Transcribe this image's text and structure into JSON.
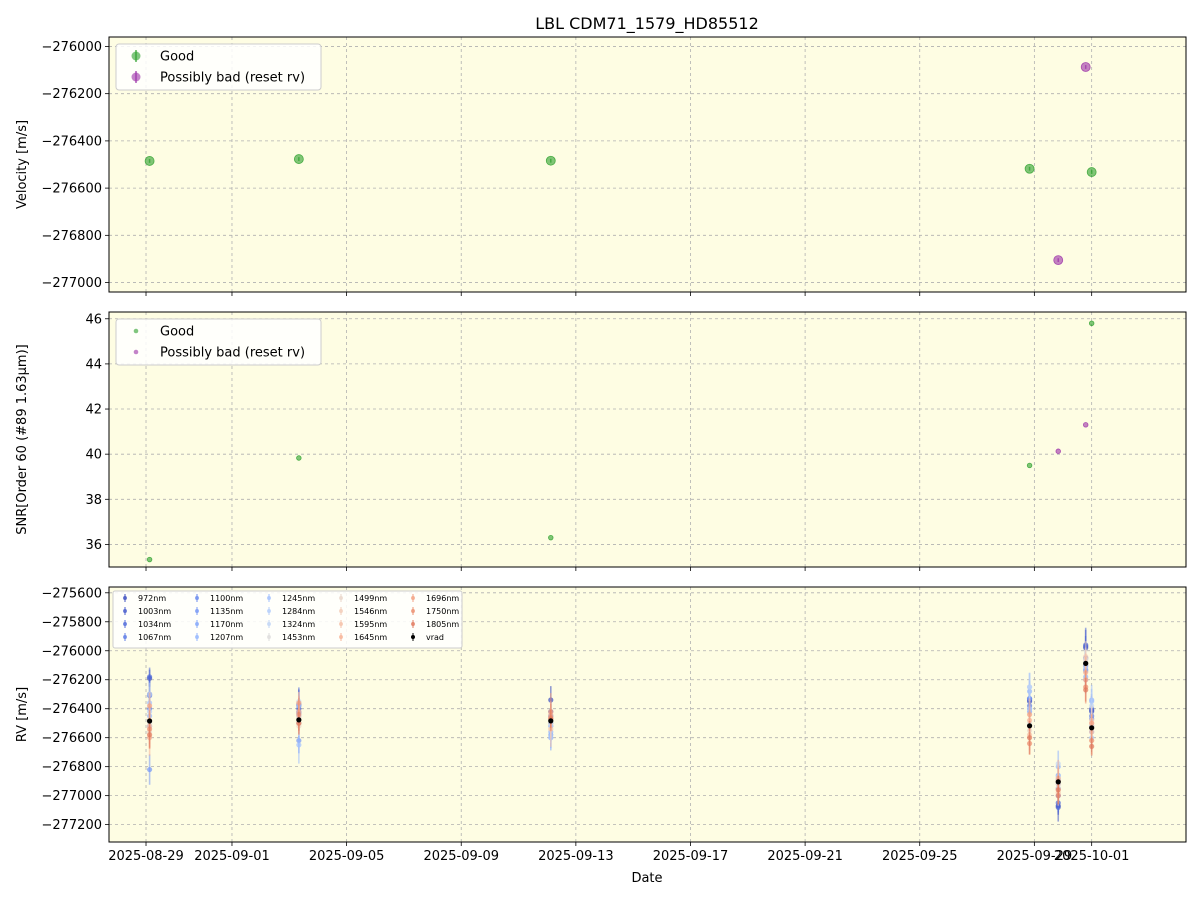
{
  "chart_data": [
    {
      "type": "scatter",
      "title": "LBL CDM71_1579_HD85512",
      "xlabel": "",
      "ylabel": "Velocity [m/s]",
      "ylim": [
        -277040,
        -275960
      ],
      "yticks": [
        -276000,
        -276200,
        -276400,
        -276600,
        -276800,
        -277000
      ],
      "yticklabels": [
        "−276000",
        "−276200",
        "−276400",
        "−276600",
        "−276800",
        "−277000"
      ],
      "grid": true,
      "legend": "upper-left",
      "series": [
        {
          "name": "Good",
          "color": "#2ca02c",
          "x": [
            "2025-08-29",
            "2025-09-03",
            "2025-09-12",
            "2025-09-28",
            "2025-10-01"
          ],
          "y": [
            -276485,
            -276477,
            -276484,
            -276518,
            -276532
          ],
          "yerr": [
            8,
            8,
            8,
            8,
            8
          ]
        },
        {
          "name": "Possibly bad (reset rv)",
          "color": "#9b30a8",
          "x": [
            "2025-09-29",
            "2025-09-30"
          ],
          "y": [
            -276905,
            -276087
          ],
          "yerr": [
            8,
            8
          ]
        }
      ]
    },
    {
      "type": "scatter",
      "title": "",
      "xlabel": "",
      "ylabel": "SNR[Order 60 (#89 1.63μm)]",
      "ylim": [
        35.0,
        46.3
      ],
      "yticks": [
        36,
        38,
        40,
        42,
        44,
        46
      ],
      "yticklabels": [
        "36",
        "38",
        "40",
        "42",
        "44",
        "46"
      ],
      "grid": true,
      "legend": "upper-left",
      "series": [
        {
          "name": "Good",
          "color": "#2ca02c",
          "x": [
            "2025-08-29",
            "2025-09-03",
            "2025-09-12",
            "2025-09-28",
            "2025-10-01"
          ],
          "y": [
            35.33,
            39.83,
            36.3,
            39.5,
            45.8
          ]
        },
        {
          "name": "Possibly bad (reset rv)",
          "color": "#9b30a8",
          "x": [
            "2025-09-29",
            "2025-09-30"
          ],
          "y": [
            40.13,
            41.3
          ]
        }
      ]
    },
    {
      "type": "scatter",
      "title": "",
      "xlabel": "Date",
      "ylabel": "RV [m/s]",
      "ylim": [
        -277320,
        -275560
      ],
      "yticks": [
        -275600,
        -275800,
        -276000,
        -276200,
        -276400,
        -276600,
        -276800,
        -277000,
        -277200
      ],
      "yticklabels": [
        "−275600",
        "−275800",
        "−276000",
        "−276200",
        "−276400",
        "−276600",
        "−276800",
        "−277000",
        "−277200"
      ],
      "xticklabels": [
        "2025-08-29",
        "2025-09-01",
        "2025-09-05",
        "2025-09-09",
        "2025-09-13",
        "2025-09-17",
        "2025-09-21",
        "2025-09-25",
        "2025-09-29",
        "2025-10-01"
      ],
      "xticks": [
        "2025-08-29",
        "2025-09-01",
        "2025-09-05",
        "2025-09-09",
        "2025-09-13",
        "2025-09-17",
        "2025-09-21",
        "2025-09-25",
        "2025-09-29",
        "2025-10-01"
      ],
      "grid": true,
      "legend": "upper-left",
      "epochs": [
        "2025-08-29",
        "2025-09-03",
        "2025-09-12",
        "2025-09-28",
        "2025-09-29",
        "2025-09-30",
        "2025-10-01"
      ],
      "series": [
        {
          "name": "972nm",
          "color": "#3b4cc0",
          "y": [
            -276190,
            -276380,
            -276340,
            -276340,
            -277070,
            -275970,
            -276410
          ]
        },
        {
          "name": "1003nm",
          "color": "#4358cb",
          "y": [
            -276300,
            -276400,
            -276420,
            -276350,
            -277080,
            -275980,
            -276420
          ]
        },
        {
          "name": "1034nm",
          "color": "#4f69d9",
          "y": [
            -276180,
            -276370,
            -276450,
            -276330,
            -277050,
            -275960,
            -276400
          ]
        },
        {
          "name": "1067nm",
          "color": "#5b7ae5",
          "y": [
            -276310,
            -276420,
            -276500,
            -276380,
            -277000,
            -276050,
            -276450
          ]
        },
        {
          "name": "1100nm",
          "color": "#6788ee",
          "y": [
            -276400,
            -276430,
            -276520,
            -276400,
            -276950,
            -276100,
            -276470
          ]
        },
        {
          "name": "1135nm",
          "color": "#7597f6",
          "y": [
            -276820,
            -276620,
            -276600,
            -276330,
            -276890,
            -276130,
            -276520
          ]
        },
        {
          "name": "1170nm",
          "color": "#82a6fb",
          "y": [
            -276520,
            -276500,
            -276580,
            -276420,
            -276860,
            -276140,
            -276560
          ]
        },
        {
          "name": "1207nm",
          "color": "#93b5fe",
          "y": [
            -276450,
            -276450,
            -276560,
            -276280,
            -276800,
            -276180,
            -276340
          ]
        },
        {
          "name": "1245nm",
          "color": "#a1c0ff",
          "y": [
            -276360,
            -276650,
            -276470,
            -276250,
            -276920,
            -276110,
            -276350
          ]
        },
        {
          "name": "1284nm",
          "color": "#b2ccfb",
          "y": [
            -276420,
            -276380,
            -276600,
            -276400,
            -276870,
            -276200,
            -276600
          ]
        },
        {
          "name": "1324nm",
          "color": "#c0d4f5",
          "y": [
            -276300,
            -276350,
            -276520,
            -276250,
            -276780,
            -276060,
            -276380
          ]
        },
        {
          "name": "1453nm",
          "color": "#dddcdc",
          "y": [
            -276500,
            -276480,
            -276500,
            -276500,
            -276900,
            -276080,
            -276520
          ]
        },
        {
          "name": "1499nm",
          "color": "#ead5c9",
          "y": [
            -276560,
            -276520,
            -276480,
            -276550,
            -276950,
            -276060,
            -276500
          ]
        },
        {
          "name": "1546nm",
          "color": "#f2cbb7",
          "y": [
            -276480,
            -276460,
            -276470,
            -276520,
            -276920,
            -276040,
            -276480
          ]
        },
        {
          "name": "1595nm",
          "color": "#f5c0a7",
          "y": [
            -276520,
            -276500,
            -276540,
            -276580,
            -276980,
            -276090,
            -276560
          ]
        },
        {
          "name": "1645nm",
          "color": "#f7b194",
          "y": [
            -276600,
            -276420,
            -276440,
            -276480,
            -276880,
            -276150,
            -276530
          ]
        },
        {
          "name": "1696nm",
          "color": "#f39f80",
          "y": [
            -276380,
            -276360,
            -276420,
            -276440,
            -276900,
            -276200,
            -276500
          ]
        },
        {
          "name": "1750nm",
          "color": "#ec8d6d",
          "y": [
            -276540,
            -276440,
            -276460,
            -276640,
            -277000,
            -276250,
            -276620
          ]
        },
        {
          "name": "1805nm",
          "color": "#e0775b",
          "y": [
            -276580,
            -276500,
            -276470,
            -276600,
            -276960,
            -276270,
            -276660
          ]
        },
        {
          "name": "vrad",
          "color": "#000000",
          "y": [
            -276485,
            -276477,
            -276484,
            -276518,
            -276905,
            -276087,
            -276532
          ]
        }
      ]
    }
  ]
}
